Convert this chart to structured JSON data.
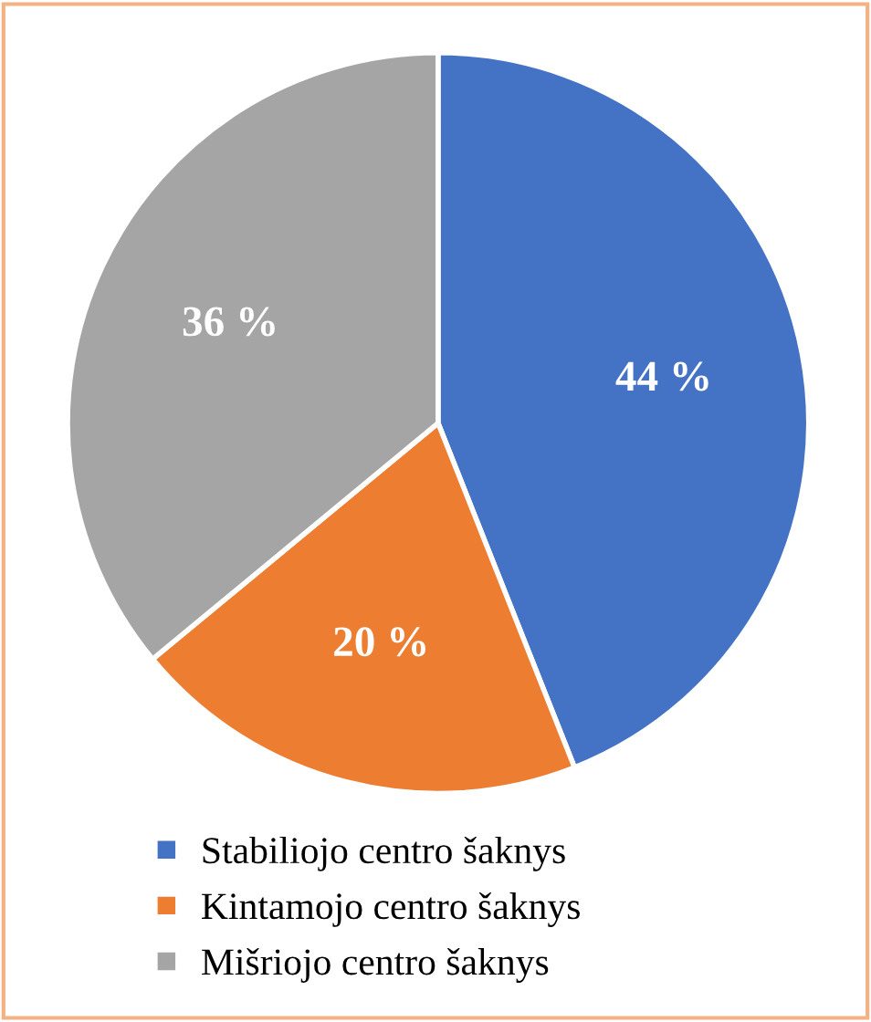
{
  "chart_data": {
    "type": "pie",
    "categories": [
      "Stabiliojo centro šaknys",
      "Kintamojo centro šaknys",
      "Mišriojo centro šaknys"
    ],
    "values": [
      44,
      20,
      36
    ],
    "colors": [
      "#4472c4",
      "#ed7d31",
      "#a5a5a5"
    ],
    "value_labels": [
      "44 %",
      "20 %",
      "36 %"
    ],
    "legend": "bottom"
  }
}
